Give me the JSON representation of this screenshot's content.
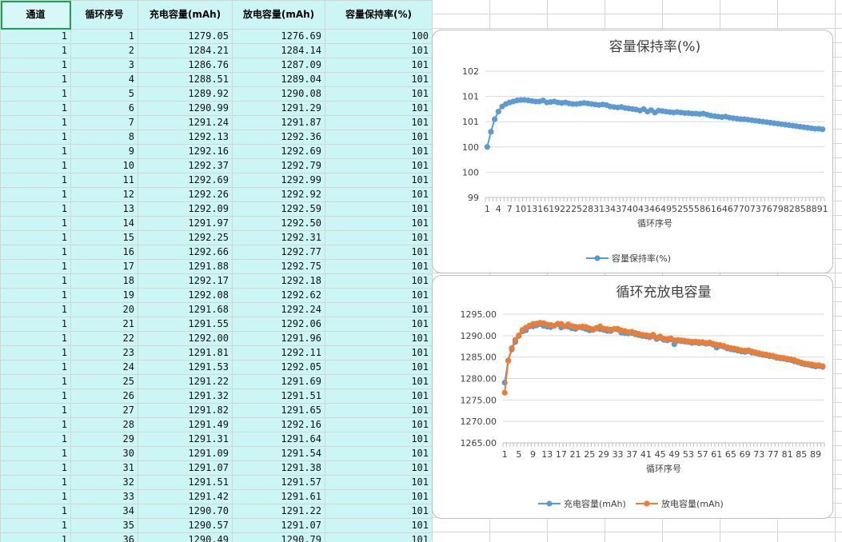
{
  "table": {
    "headers": [
      "通道",
      "循环序号",
      "充电容量(mAh)",
      "放电容量(mAh)",
      "容量保持率(%)"
    ],
    "rows": [
      [
        "1",
        "1",
        "1279.05",
        "1276.69",
        "100"
      ],
      [
        "1",
        "2",
        "1284.21",
        "1284.14",
        "101"
      ],
      [
        "1",
        "3",
        "1286.76",
        "1287.09",
        "101"
      ],
      [
        "1",
        "4",
        "1288.51",
        "1289.04",
        "101"
      ],
      [
        "1",
        "5",
        "1289.92",
        "1290.08",
        "101"
      ],
      [
        "1",
        "6",
        "1290.99",
        "1291.29",
        "101"
      ],
      [
        "1",
        "7",
        "1291.24",
        "1291.87",
        "101"
      ],
      [
        "1",
        "8",
        "1292.13",
        "1292.36",
        "101"
      ],
      [
        "1",
        "9",
        "1292.16",
        "1292.69",
        "101"
      ],
      [
        "1",
        "10",
        "1292.37",
        "1292.79",
        "101"
      ],
      [
        "1",
        "11",
        "1292.69",
        "1292.99",
        "101"
      ],
      [
        "1",
        "12",
        "1292.26",
        "1292.92",
        "101"
      ],
      [
        "1",
        "13",
        "1292.09",
        "1292.59",
        "101"
      ],
      [
        "1",
        "14",
        "1291.97",
        "1292.50",
        "101"
      ],
      [
        "1",
        "15",
        "1292.25",
        "1292.31",
        "101"
      ],
      [
        "1",
        "16",
        "1292.66",
        "1292.77",
        "101"
      ],
      [
        "1",
        "17",
        "1291.88",
        "1292.75",
        "101"
      ],
      [
        "1",
        "18",
        "1292.17",
        "1292.18",
        "101"
      ],
      [
        "1",
        "19",
        "1292.08",
        "1292.62",
        "101"
      ],
      [
        "1",
        "20",
        "1291.68",
        "1292.24",
        "101"
      ],
      [
        "1",
        "21",
        "1291.55",
        "1292.06",
        "101"
      ],
      [
        "1",
        "22",
        "1292.00",
        "1291.96",
        "101"
      ],
      [
        "1",
        "23",
        "1291.81",
        "1292.11",
        "101"
      ],
      [
        "1",
        "24",
        "1291.53",
        "1292.05",
        "101"
      ],
      [
        "1",
        "25",
        "1291.22",
        "1291.69",
        "101"
      ],
      [
        "1",
        "26",
        "1291.32",
        "1291.51",
        "101"
      ],
      [
        "1",
        "27",
        "1291.82",
        "1291.65",
        "101"
      ],
      [
        "1",
        "28",
        "1291.49",
        "1292.16",
        "101"
      ],
      [
        "1",
        "29",
        "1291.31",
        "1291.64",
        "101"
      ],
      [
        "1",
        "30",
        "1291.09",
        "1291.54",
        "101"
      ],
      [
        "1",
        "31",
        "1291.07",
        "1291.38",
        "101"
      ],
      [
        "1",
        "32",
        "1291.51",
        "1291.57",
        "101"
      ],
      [
        "1",
        "33",
        "1291.42",
        "1291.61",
        "101"
      ],
      [
        "1",
        "34",
        "1290.70",
        "1291.22",
        "101"
      ],
      [
        "1",
        "35",
        "1290.57",
        "1291.07",
        "101"
      ],
      [
        "1",
        "36",
        "1290.49",
        "1290.79",
        "101"
      ]
    ]
  },
  "chart_data": [
    {
      "type": "line",
      "title": "容量保持率(%)",
      "xlabel": "循环序号",
      "ylabel": "",
      "y_tick_labels": [
        "99",
        "100",
        "100",
        "101",
        "101",
        "102"
      ],
      "ylim": [
        99.0,
        101.5
      ],
      "x_tick_labels": [
        "1",
        "4",
        "7",
        "10",
        "13",
        "16",
        "19",
        "22",
        "25",
        "28",
        "31",
        "34",
        "37",
        "40",
        "43",
        "46",
        "49",
        "52",
        "55",
        "58",
        "61",
        "64",
        "67",
        "70",
        "73",
        "76",
        "79",
        "82",
        "85",
        "88",
        "91"
      ],
      "legend_position": "bottom",
      "series": [
        {
          "name": "容量保持率(%)",
          "color": "#5b9bd5",
          "values": [
            100.0,
            100.3,
            100.55,
            100.7,
            100.8,
            100.85,
            100.88,
            100.9,
            100.92,
            100.93,
            100.93,
            100.92,
            100.91,
            100.9,
            100.9,
            100.92,
            100.88,
            100.89,
            100.9,
            100.88,
            100.87,
            100.88,
            100.86,
            100.85,
            100.85,
            100.86,
            100.87,
            100.86,
            100.85,
            100.84,
            100.83,
            100.84,
            100.83,
            100.8,
            100.79,
            100.78,
            100.79,
            100.77,
            100.76,
            100.75,
            100.74,
            100.72,
            100.75,
            100.7,
            100.73,
            100.68,
            100.72,
            100.71,
            100.7,
            100.69,
            100.68,
            100.69,
            100.68,
            100.67,
            100.67,
            100.66,
            100.66,
            100.65,
            100.66,
            100.64,
            100.62,
            100.61,
            100.6,
            100.59,
            100.6,
            100.58,
            100.57,
            100.56,
            100.55,
            100.55,
            100.54,
            100.53,
            100.52,
            100.51,
            100.5,
            100.49,
            100.48,
            100.47,
            100.46,
            100.45,
            100.44,
            100.43,
            100.42,
            100.41,
            100.4,
            100.39,
            100.38,
            100.37,
            100.36,
            100.36,
            100.35
          ]
        }
      ]
    },
    {
      "type": "line",
      "title": "循环充放电容量",
      "xlabel": "循环序号",
      "ylabel": "",
      "ylim": [
        1265.0,
        1295.0
      ],
      "y_tick_labels": [
        "1265.00",
        "1270.00",
        "1275.00",
        "1280.00",
        "1285.00",
        "1290.00",
        "1295.00"
      ],
      "x_tick_labels": [
        "1",
        "5",
        "9",
        "13",
        "17",
        "21",
        "25",
        "29",
        "33",
        "37",
        "41",
        "45",
        "49",
        "53",
        "57",
        "61",
        "65",
        "69",
        "73",
        "77",
        "81",
        "85",
        "89"
      ],
      "legend_position": "bottom",
      "series": [
        {
          "name": "充电容量(mAh)",
          "color": "#5b9bd5",
          "values": [
            1279.05,
            1284.21,
            1286.76,
            1288.51,
            1289.92,
            1290.99,
            1291.24,
            1292.13,
            1292.16,
            1292.37,
            1292.69,
            1292.26,
            1292.09,
            1291.97,
            1292.25,
            1292.66,
            1291.88,
            1292.17,
            1292.08,
            1291.68,
            1291.55,
            1292.0,
            1291.81,
            1291.53,
            1291.22,
            1291.32,
            1291.82,
            1291.49,
            1291.31,
            1291.09,
            1291.07,
            1291.51,
            1291.42,
            1290.7,
            1290.57,
            1290.49,
            1290.6,
            1290.3,
            1290.1,
            1289.9,
            1289.8,
            1289.6,
            1289.9,
            1289.2,
            1289.5,
            1289.0,
            1288.9,
            1289.1,
            1288.0,
            1288.8,
            1288.7,
            1288.6,
            1288.5,
            1288.3,
            1288.4,
            1288.2,
            1288.3,
            1288.1,
            1288.2,
            1287.9,
            1287.2,
            1287.6,
            1287.4,
            1287.0,
            1286.8,
            1286.7,
            1286.5,
            1286.3,
            1286.2,
            1286.4,
            1286.0,
            1285.9,
            1285.7,
            1285.5,
            1285.4,
            1285.2,
            1285.1,
            1284.8,
            1284.7,
            1284.6,
            1284.4,
            1284.3,
            1284.0,
            1283.8,
            1283.5,
            1283.3,
            1283.2,
            1283.0,
            1282.8,
            1282.9,
            1282.7
          ]
        },
        {
          "name": "放电容量(mAh)",
          "color": "#ed7d31",
          "values": [
            1276.69,
            1284.14,
            1287.09,
            1289.04,
            1290.08,
            1291.29,
            1291.87,
            1292.36,
            1292.69,
            1292.79,
            1292.99,
            1292.92,
            1292.59,
            1292.5,
            1292.31,
            1292.77,
            1292.75,
            1292.18,
            1292.62,
            1292.24,
            1292.06,
            1291.96,
            1292.11,
            1292.05,
            1291.69,
            1291.51,
            1291.65,
            1292.16,
            1291.64,
            1291.54,
            1291.38,
            1291.57,
            1291.61,
            1291.22,
            1291.07,
            1290.79,
            1290.9,
            1290.6,
            1290.4,
            1290.2,
            1290.1,
            1289.9,
            1290.2,
            1289.5,
            1289.8,
            1289.3,
            1289.2,
            1289.4,
            1288.9,
            1289.0,
            1288.9,
            1288.8,
            1288.7,
            1288.6,
            1288.6,
            1288.5,
            1288.5,
            1288.3,
            1288.4,
            1288.1,
            1287.9,
            1287.8,
            1287.6,
            1287.3,
            1287.1,
            1287.0,
            1286.8,
            1286.6,
            1286.5,
            1286.6,
            1286.3,
            1286.1,
            1285.9,
            1285.7,
            1285.6,
            1285.4,
            1285.3,
            1285.0,
            1284.9,
            1284.8,
            1284.6,
            1284.5,
            1284.3,
            1284.0,
            1283.7,
            1283.5,
            1283.4,
            1283.3,
            1283.1,
            1283.1,
            1282.9
          ]
        }
      ]
    }
  ]
}
